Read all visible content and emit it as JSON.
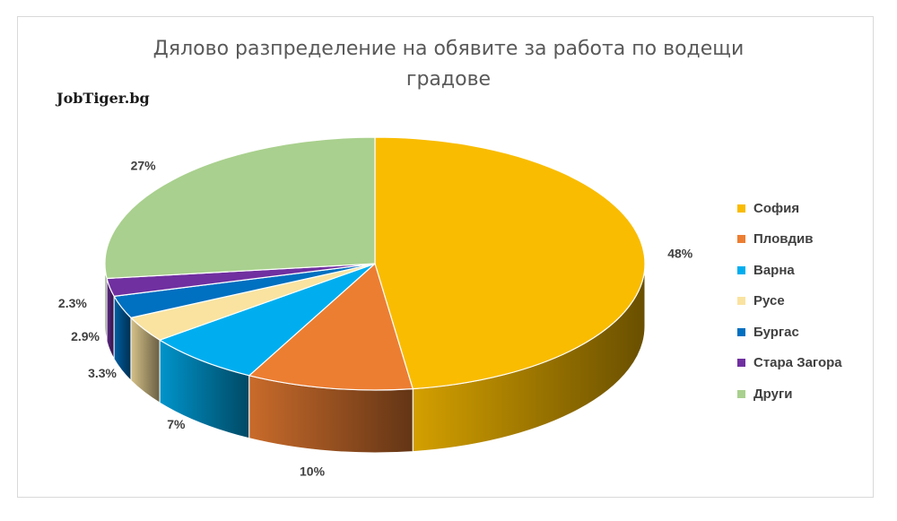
{
  "brand": "JobTiger.bg",
  "chart_data": {
    "type": "pie",
    "title": "Дялово разпределение на обявите за работа по водещи градове",
    "title_lines": [
      "Дялово разпределение на обявите за работа по водещи",
      "градове"
    ],
    "categories": [
      "София",
      "Пловдив",
      "Варна",
      "Русе",
      "Бургас",
      "Стара Загора",
      "Други"
    ],
    "values": [
      48,
      10,
      7,
      3.3,
      2.9,
      2.3,
      27
    ],
    "labels": [
      "48%",
      "10%",
      "7%",
      "3.3%",
      "2.9%",
      "2.3%",
      "27%"
    ],
    "colors": [
      "#F9BC00",
      "#EC7E32",
      "#00AEEF",
      "#FAE3A0",
      "#0070C0",
      "#7030A0",
      "#A9D08E"
    ],
    "style": "3d",
    "legend_position": "right"
  }
}
